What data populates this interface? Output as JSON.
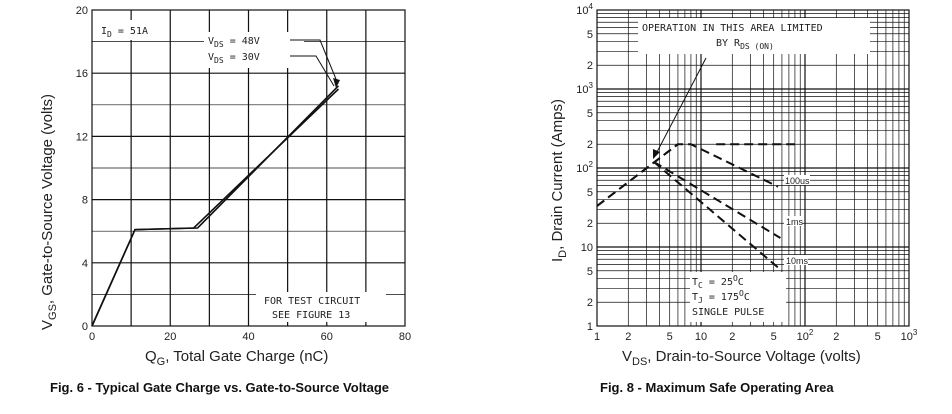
{
  "chart_data": [
    {
      "type": "line",
      "caption": "Fig. 6 - Typical Gate Charge vs. Gate-to-Source Voltage",
      "xlabel": "Q",
      "xlabel_sub": "G",
      "xlabel_rest": ", Total Gate Charge (nC)",
      "ylabel": "V",
      "ylabel_sub": "GS",
      "ylabel_rest": ", Gate-to-Source Voltage (volts)",
      "xlim": [
        0,
        80
      ],
      "ylim": [
        0,
        20
      ],
      "xticks": [
        "0",
        "20",
        "40",
        "60",
        "80"
      ],
      "yticks": [
        "0",
        "4",
        "8",
        "12",
        "16",
        "20"
      ],
      "grid": true,
      "annotations": {
        "id_label": "I",
        "id_sub": "D",
        "id_value": " = 51A",
        "v1_label": "V",
        "v1_sub": "DS",
        "v1_value": " =  48V",
        "v2_label": "V",
        "v2_sub": "DS",
        "v2_value": " =  30V",
        "test_line1": "FOR TEST CIRCUIT",
        "test_line2": "SEE FIGURE 13"
      },
      "series": [
        {
          "values": [
            [
              0,
              0
            ],
            [
              11,
              6.1
            ],
            [
              26,
              6.2
            ],
            [
              63,
              15.0
            ]
          ]
        },
        {
          "values": [
            [
              0,
              0
            ],
            [
              11,
              6.1
            ],
            [
              27,
              6.2
            ],
            [
              63,
              15.2
            ]
          ]
        }
      ]
    },
    {
      "type": "line",
      "caption": "Fig. 8 - Maximum Safe Operating Area",
      "scale": "log-log",
      "xlabel": "V",
      "xlabel_sub": "DS",
      "xlabel_rest": ", Drain-to-Source Voltage (volts)",
      "ylabel": "I",
      "ylabel_sub": "D",
      "ylabel_rest": ", Drain Current (Amps)",
      "xlim": [
        1,
        1000
      ],
      "ylim": [
        1,
        10000
      ],
      "grid": true,
      "xticks": [
        {
          "v": 1,
          "t": "1"
        },
        {
          "v": 2,
          "t": "2"
        },
        {
          "v": 5,
          "t": "5"
        },
        {
          "v": 10,
          "t": "10"
        },
        {
          "v": 20,
          "t": "2"
        },
        {
          "v": 50,
          "t": "5"
        },
        {
          "v": 100,
          "t": "10",
          "sup": "2"
        },
        {
          "v": 200,
          "t": "2"
        },
        {
          "v": 500,
          "t": "5"
        },
        {
          "v": 1000,
          "t": "10",
          "sup": "3"
        }
      ],
      "yticks": [
        {
          "v": 1,
          "t": "1"
        },
        {
          "v": 2,
          "t": "2"
        },
        {
          "v": 5,
          "t": "5"
        },
        {
          "v": 10,
          "t": "10"
        },
        {
          "v": 20,
          "t": "2"
        },
        {
          "v": 50,
          "t": "5"
        },
        {
          "v": 100,
          "t": "10",
          "sup": "2"
        },
        {
          "v": 200,
          "t": "2"
        },
        {
          "v": 500,
          "t": "5"
        },
        {
          "v": 1000,
          "t": "10",
          "sup": "3"
        },
        {
          "v": 2000,
          "t": "2"
        },
        {
          "v": 5000,
          "t": "5"
        },
        {
          "v": 10000,
          "t": "10",
          "sup": "4"
        }
      ],
      "annotations": {
        "operation_line1": "OPERATION IN THIS AREA LIMITED",
        "operation_line2": "BY R",
        "operation_sub": "DS (ON)",
        "tc_label": "T",
        "tc_sub": "C",
        "tc_value": " = 25",
        "tc_sup": "O",
        "tc_unit": "C",
        "tj_label": "T",
        "tj_sub": "J",
        "tj_value": " = 175",
        "tj_sup": "O",
        "tj_unit": "C",
        "pulse": "SINGLE PULSE",
        "l100us": "100us",
        "l1ms": "1ms",
        "l10ms": "10ms"
      },
      "series": [
        {
          "name": "100us",
          "values": [
            [
              1,
              33
            ],
            [
              6,
              200
            ],
            [
              8,
              200
            ],
            [
              55,
              58
            ]
          ]
        },
        {
          "name": "1ms",
          "values": [
            [
              14,
              200
            ],
            [
              80,
              200
            ],
            [
              80,
              200
            ]
          ]
        },
        {
          "name": "1ms-limit",
          "values": [
            [
              3.5,
              120
            ],
            [
              58,
              13
            ]
          ]
        },
        {
          "name": "10ms-limit",
          "values": [
            [
              3.5,
              120
            ],
            [
              60,
              5
            ]
          ]
        },
        {
          "name": "rds-limit",
          "values": [
            [
              1,
              33
            ],
            [
              6,
              200
            ]
          ]
        }
      ]
    }
  ]
}
